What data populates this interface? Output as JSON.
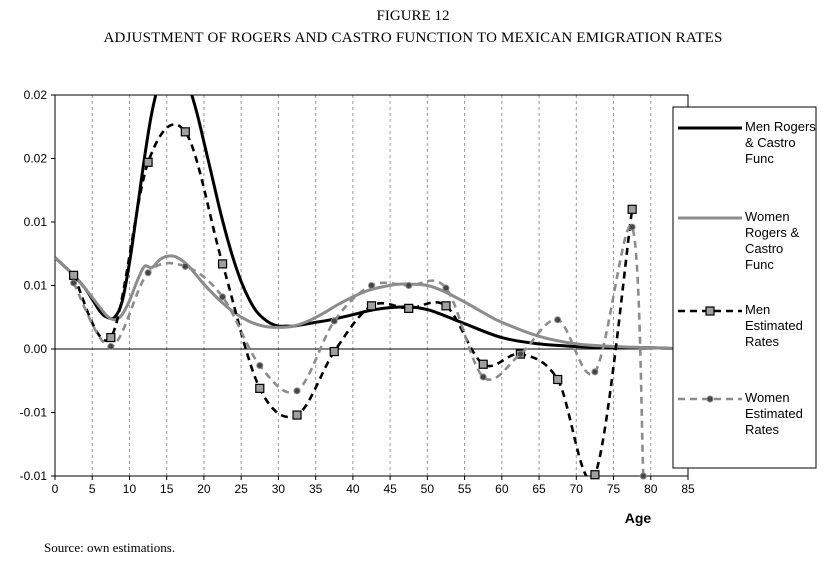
{
  "figure": {
    "label": "FIGURE 12",
    "title": "ADJUSTMENT OF ROGERS AND CASTRO FUNCTION TO MEXICAN EMIGRATION RATES",
    "source": "Source: own estimations."
  },
  "chart_data": {
    "type": "line",
    "xlabel": "Age",
    "ylabel": "",
    "xlim": [
      0,
      85
    ],
    "ylim": [
      -0.01,
      0.02
    ],
    "x_ticks": [
      "0",
      "5",
      "10",
      "15",
      "20",
      "25",
      "30",
      "35",
      "40",
      "45",
      "50",
      "55",
      "60",
      "65",
      "70",
      "75",
      "80",
      "85"
    ],
    "y_ticks": [
      "-0.01",
      "-0.01",
      "0.00",
      "0.01",
      "0.01",
      "0.02",
      "0.02"
    ],
    "grid": "vertical dashed",
    "legend_position": "right",
    "series": [
      {
        "name": "Men Rogers & Castro Func",
        "style": "solid",
        "color": "#000000",
        "x": [
          0,
          2,
          4,
          6,
          7,
          8,
          9,
          10,
          11,
          12,
          13,
          14,
          15,
          16,
          17,
          18,
          19,
          20,
          21,
          22,
          23,
          24,
          25,
          26,
          27,
          28,
          29,
          30,
          31,
          32,
          33,
          34,
          35,
          37,
          40,
          42,
          44,
          46,
          48,
          50,
          52,
          55,
          60,
          65,
          70,
          75,
          80,
          85
        ],
        "y": [
          0.0072,
          0.0061,
          0.0048,
          0.003,
          0.0025,
          0.0025,
          0.0037,
          0.0068,
          0.0108,
          0.015,
          0.0186,
          0.021,
          0.0224,
          0.0227,
          0.0221,
          0.0207,
          0.0187,
          0.0163,
          0.0138,
          0.0113,
          0.009,
          0.007,
          0.0053,
          0.004,
          0.003,
          0.0024,
          0.002,
          0.0018,
          0.0018,
          0.0018,
          0.0019,
          0.002,
          0.0021,
          0.0023,
          0.0027,
          0.003,
          0.0032,
          0.0033,
          0.0033,
          0.0031,
          0.0027,
          0.002,
          0.0009,
          0.0004,
          0.0002,
          0.0001,
          0.0001,
          0.0
        ]
      },
      {
        "name": "Women Rogers & Castro Func",
        "style": "solid",
        "color": "#8c8c8c",
        "x": [
          0,
          2,
          4,
          6,
          7,
          8,
          9,
          10,
          11,
          12,
          13,
          14,
          15,
          16,
          17,
          18,
          19,
          20,
          22,
          24,
          26,
          28,
          30,
          32,
          34,
          36,
          38,
          40,
          42,
          44,
          46,
          48,
          50,
          52,
          55,
          58,
          60,
          65,
          70,
          75,
          80,
          85
        ],
        "y": [
          0.0072,
          0.0061,
          0.0048,
          0.0033,
          0.0026,
          0.0023,
          0.0027,
          0.0038,
          0.0053,
          0.0065,
          0.0064,
          0.007,
          0.0073,
          0.0073,
          0.007,
          0.0065,
          0.0058,
          0.0051,
          0.0039,
          0.0029,
          0.0022,
          0.0018,
          0.0017,
          0.0018,
          0.0022,
          0.0028,
          0.0035,
          0.0041,
          0.0046,
          0.0049,
          0.0051,
          0.0051,
          0.005,
          0.0046,
          0.0037,
          0.0027,
          0.0021,
          0.001,
          0.0004,
          0.0002,
          0.0001,
          0.0
        ]
      },
      {
        "name": "Men Estimated Rates",
        "style": "dashed",
        "color": "#000000",
        "marker": "square",
        "x": [
          2.5,
          7.5,
          12.5,
          17.5,
          22.5,
          27.5,
          32.5,
          37.5,
          42.5,
          47.5,
          52.5,
          57.5,
          62.5,
          67.5,
          72.5,
          77.5
        ],
        "y": [
          0.0058,
          0.0009,
          0.0147,
          0.0171,
          0.0067,
          -0.0031,
          -0.0052,
          -0.0002,
          0.0034,
          0.0032,
          0.0034,
          -0.0012,
          -0.0004,
          -0.0024,
          -0.0099,
          0.011
        ]
      },
      {
        "name": "Women Estimated Rates",
        "style": "dashed",
        "color": "#8c8c8c",
        "marker": "circle-dot",
        "x": [
          2.5,
          7.5,
          12.5,
          17.5,
          22.5,
          27.5,
          32.5,
          37.5,
          42.5,
          47.5,
          52.5,
          57.5,
          62.5,
          67.5,
          72.5,
          77.5,
          79
        ],
        "y": [
          0.0052,
          0.0002,
          0.006,
          0.0065,
          0.0041,
          -0.0013,
          -0.0033,
          0.0022,
          0.005,
          0.005,
          0.0048,
          -0.0022,
          -0.0004,
          0.0023,
          -0.0018,
          0.0096,
          -0.01
        ]
      }
    ]
  }
}
